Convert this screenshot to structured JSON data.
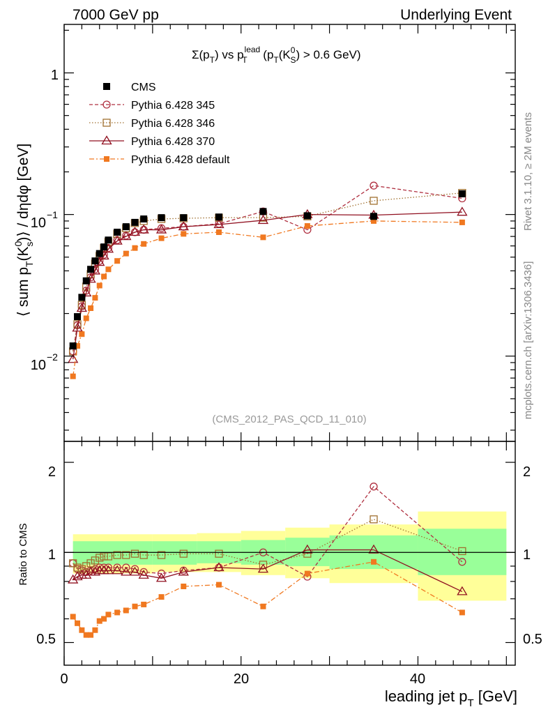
{
  "header": {
    "energy_label": "7000 GeV pp",
    "process_label": "Underlying Event",
    "plot_title": "Σ(p_T) vs p_T^lead (p_T(K_S^0) > 0.6 GeV)",
    "title_parts": {
      "sigma": "Σ(p",
      "T": "T",
      "vs": ") vs p",
      "lead": "lead",
      "open": " (p",
      "k": "(K",
      "zero": "0",
      "S": "S",
      "cut": ") > 0.6 GeV)"
    },
    "reference_label": "(CMS_2012_PAS_QCD_11_010)"
  },
  "side": {
    "rivet_label": "Rivet 3.1.10, ≥ 2M events",
    "mcplots_label": "mcplots.cern.ch [arXiv:1306.3436]"
  },
  "axes": {
    "ylabel_main": "⟨ sum p_T(K_S^0) ⟩ / dηdφ [GeV]",
    "ylabel_ratio": "Ratio to CMS",
    "xlabel": "leading jet p_T [GeV]",
    "ylabel_parts": {
      "open": "⟨ sum p",
      "T": "T",
      "k": "(K",
      "zero": "0",
      "s": "s",
      "close": ")⟩ / dηdφ [GeV]"
    },
    "xlabel_parts": {
      "main": "leading jet p",
      "T": "T",
      "unit": " [GeV]"
    },
    "main_yticks": [
      "1",
      "10",
      "−1",
      "10",
      "−2"
    ],
    "ratio_yticks": [
      "0.5",
      "1",
      "2"
    ],
    "xticks": [
      "0",
      "20",
      "40"
    ]
  },
  "legend": {
    "cms": "CMS",
    "p345": "Pythia 6.428 345",
    "p346": "Pythia 6.428 346",
    "p370": "Pythia 6.428 370",
    "pdef": "Pythia 6.428 default"
  },
  "chart_data": {
    "type": "line",
    "title": "Σ(p_T) vs p_T^lead (p_T(K_S^0) > 0.6 GeV)",
    "xlabel": "leading jet p_T [GeV]",
    "ylabel": "⟨ sum p_T(K_S^0) ⟩ / dηdφ [GeV]",
    "xlim": [
      0,
      51
    ],
    "ylim": [
      0.0025,
      2.2
    ],
    "yscale": "log",
    "ratio_ylim": [
      0.42,
      2.35
    ],
    "ratio_ylabel": "Ratio to CMS",
    "x": [
      1.0,
      1.5,
      2.0,
      2.5,
      3.0,
      3.5,
      4.0,
      4.5,
      5.0,
      6.0,
      7.0,
      8.0,
      9.0,
      11.0,
      13.5,
      17.5,
      22.5,
      27.5,
      35.0,
      45.0
    ],
    "series": [
      {
        "name": "CMS",
        "values": [
          0.0118,
          0.019,
          0.026,
          0.034,
          0.041,
          0.047,
          0.053,
          0.059,
          0.066,
          0.075,
          0.082,
          0.088,
          0.093,
          0.095,
          0.095,
          0.096,
          0.105,
          0.098,
          0.097,
          0.14
        ]
      },
      {
        "name": "Pythia 6.428 345",
        "values": [
          0.0108,
          0.0165,
          0.0225,
          0.029,
          0.036,
          0.041,
          0.047,
          0.052,
          0.058,
          0.066,
          0.071,
          0.075,
          0.078,
          0.08,
          0.082,
          0.086,
          0.105,
          0.078,
          0.16,
          0.13
        ]
      },
      {
        "name": "Pythia 6.428 346",
        "values": [
          0.0108,
          0.0168,
          0.023,
          0.031,
          0.038,
          0.045,
          0.051,
          0.058,
          0.064,
          0.073,
          0.08,
          0.087,
          0.09,
          0.093,
          0.094,
          0.095,
          0.095,
          0.097,
          0.125,
          0.142
        ]
      },
      {
        "name": "Pythia 6.428 370",
        "values": [
          0.0095,
          0.0158,
          0.0218,
          0.028,
          0.035,
          0.04,
          0.046,
          0.051,
          0.057,
          0.065,
          0.07,
          0.075,
          0.078,
          0.078,
          0.082,
          0.085,
          0.091,
          0.1,
          0.099,
          0.104
        ]
      },
      {
        "name": "Pythia 6.428 default",
        "values": [
          0.0072,
          0.0118,
          0.0143,
          0.0185,
          0.0218,
          0.0258,
          0.0315,
          0.0365,
          0.041,
          0.047,
          0.053,
          0.058,
          0.062,
          0.068,
          0.073,
          0.075,
          0.069,
          0.083,
          0.09,
          0.088
        ]
      }
    ],
    "ratio_series": [
      {
        "name": "Pythia 6.428 345",
        "values": [
          0.92,
          0.88,
          0.87,
          0.86,
          0.87,
          0.88,
          0.89,
          0.89,
          0.89,
          0.89,
          0.89,
          0.88,
          0.86,
          0.85,
          0.87,
          0.89,
          1.0,
          0.83,
          1.66,
          0.93
        ]
      },
      {
        "name": "Pythia 6.428 346",
        "values": [
          0.92,
          0.89,
          0.88,
          0.9,
          0.92,
          0.94,
          0.96,
          0.97,
          0.97,
          0.98,
          0.98,
          0.99,
          0.98,
          0.98,
          0.99,
          0.99,
          0.91,
          0.99,
          1.29,
          1.01
        ]
      },
      {
        "name": "Pythia 6.428 370",
        "values": [
          0.81,
          0.83,
          0.84,
          0.84,
          0.86,
          0.86,
          0.87,
          0.87,
          0.87,
          0.87,
          0.86,
          0.86,
          0.84,
          0.82,
          0.86,
          0.89,
          0.88,
          1.02,
          1.02,
          0.74
        ]
      },
      {
        "name": "Pythia 6.428 default",
        "values": [
          0.61,
          0.58,
          0.55,
          0.53,
          0.53,
          0.55,
          0.59,
          0.6,
          0.62,
          0.63,
          0.64,
          0.66,
          0.67,
          0.71,
          0.77,
          0.78,
          0.66,
          0.85,
          0.93,
          0.63
        ]
      }
    ],
    "ratio_bands": {
      "x_edges": [
        1,
        10,
        15,
        20,
        25,
        30,
        40,
        50
      ],
      "inner": [
        [
          0.91,
          1.09
        ],
        [
          0.91,
          1.09
        ],
        [
          0.92,
          1.09
        ],
        [
          0.91,
          1.1
        ],
        [
          0.9,
          1.12
        ],
        [
          0.88,
          1.14
        ],
        [
          0.84,
          1.2
        ]
      ],
      "outer": [
        [
          0.85,
          1.15
        ],
        [
          0.86,
          1.15
        ],
        [
          0.86,
          1.16
        ],
        [
          0.84,
          1.18
        ],
        [
          0.82,
          1.21
        ],
        [
          0.79,
          1.24
        ],
        [
          0.69,
          1.37
        ]
      ]
    },
    "colors": {
      "CMS": "#000000",
      "Pythia 6.428 345": "#b03040",
      "Pythia 6.428 346": "#a07030",
      "Pythia 6.428 370": "#901020",
      "Pythia 6.428 default": "#f07820",
      "band_inner": "#99ff99",
      "band_outer": "#ffff99"
    }
  }
}
